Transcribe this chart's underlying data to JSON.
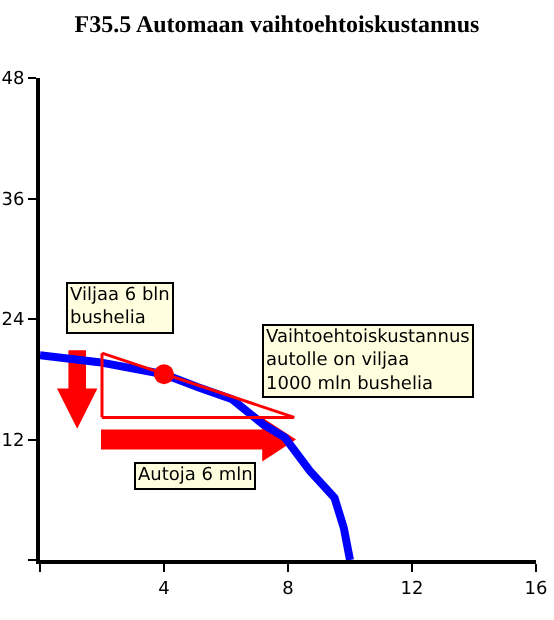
{
  "chart_data": {
    "type": "line",
    "title": "F35.5 Automaan vaihtoehtoiskustannus",
    "series": [
      {
        "color": "#0000ff",
        "x": [
          0,
          1.9,
          4,
          5.1,
          6.2,
          7.2,
          7.9,
          8.7,
          9.5,
          9.8,
          10
        ],
        "values": [
          20.4,
          19.7,
          18.5,
          17.2,
          16,
          13.5,
          12.2,
          8.9,
          6.2,
          3.2,
          0
        ]
      },
      {
        "type": "line",
        "color": "#ff0000",
        "x": [
          2,
          8.2
        ],
        "values": [
          20.6,
          14.2
        ]
      },
      {
        "type": "line",
        "color": "#ff0000",
        "x": [
          2,
          8.2
        ],
        "values": [
          14.2,
          14.2
        ]
      },
      {
        "type": "line",
        "color": "#ff0000",
        "x": [
          2,
          2
        ],
        "values": [
          14.2,
          20.6
        ]
      },
      {
        "type": "scatter",
        "color": "#ff0000",
        "x": [
          4
        ],
        "values": [
          18.5
        ]
      }
    ],
    "xlim": [
      0,
      16
    ],
    "xticks": [
      {
        "value": 0,
        "label": null
      },
      4,
      8,
      12,
      16
    ],
    "ylim": [
      0,
      48
    ],
    "yticks": [
      {
        "value": 0,
        "label": null
      },
      12,
      24,
      36,
      48
    ],
    "grid": false,
    "line_style": "solid",
    "annotations": [
      "Viljaa 6 bln\nbushelia",
      "Vaihtoehtoiskustannus\nautolle on viljaa\n1000 mln bushelia",
      "Autoja 6 mln"
    ]
  }
}
